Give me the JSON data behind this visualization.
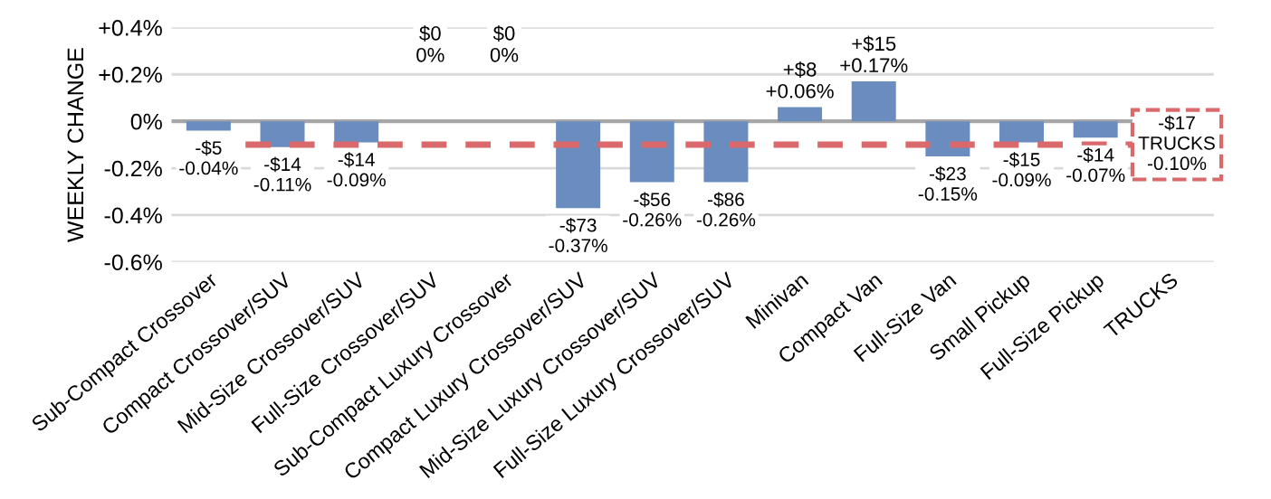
{
  "chart_data": {
    "type": "bar",
    "ylabel": "WEEKLY CHANGE",
    "categories": [
      "Sub-Compact Crossover",
      "Compact Crossover/SUV",
      "Mid-Size Crossover/SUV",
      "Full-Size Crossover/SUV",
      "Sub-Compact Luxury Crossover",
      "Compact Luxury Crossover/SUV",
      "Mid-Size Luxury Crossover/SUV",
      "Full-Size Luxury Crossover/SUV",
      "Minivan",
      "Compact Van",
      "Full-Size Van",
      "Small Pickup",
      "Full-Size Pickup",
      "TRUCKS"
    ],
    "values": [
      -0.04,
      -0.11,
      -0.09,
      0,
      0,
      -0.37,
      -0.26,
      -0.26,
      0.06,
      0.17,
      -0.15,
      -0.09,
      -0.07,
      null
    ],
    "value_labels": [
      "-$5\n-0.04%",
      "-$14\n-0.11%",
      "-$14\n-0.09%",
      "$0\n0%",
      "$0\n0%",
      "-$73\n-0.37%",
      "-$56\n-0.26%",
      "-$86\n-0.26%",
      "+$8\n+0.06%",
      "+$15\n+0.17%",
      "-$23\n-0.15%",
      "-$15\n-0.09%",
      "-$14\n-0.07%",
      null
    ],
    "color": "#6a8cbf",
    "ylim": [
      -0.6,
      0.4
    ],
    "yticks": [
      {
        "value": -0.6,
        "label": "-0.6%"
      },
      {
        "value": -0.4,
        "label": "-0.4%"
      },
      {
        "value": -0.2,
        "label": "-0.2%"
      },
      {
        "value": 0,
        "label": "0%"
      },
      {
        "value": 0.2,
        "label": "+0.2%"
      },
      {
        "value": 0.4,
        "label": "+0.4%"
      }
    ],
    "grid": "y",
    "ref_lines": [
      {
        "axis": "y",
        "value": -0.1,
        "label": "-$17\nTRUCKS\n-0.10%",
        "color": "#d9696b",
        "line_style": "dashed"
      }
    ]
  }
}
